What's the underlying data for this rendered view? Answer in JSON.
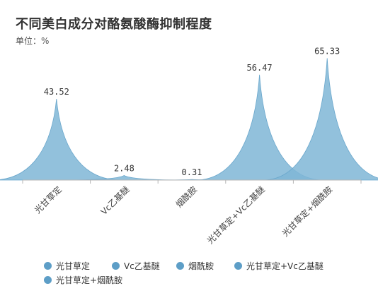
{
  "title": "不同美白成分对酪氨酸酶抑制程度",
  "unit_label": "单位：%",
  "colors": {
    "series": "#7fb6d6",
    "series_stroke": "#6aa7cc",
    "legend_dot": "#5d9ec7",
    "axis": "#b5b5b5"
  },
  "chart_data": {
    "type": "area",
    "title": "不同美白成分对酪氨酸酶抑制程度",
    "ylabel": "单位：%",
    "categories": [
      "光甘草定",
      "Vc乙基醚",
      "烟酰胺",
      "光甘草定+Vc乙基醚",
      "光甘草定+烟酰胺"
    ],
    "values": [
      43.52,
      2.48,
      0.31,
      56.47,
      65.33
    ],
    "data_labels": [
      "43.52",
      "2.48",
      "0.31",
      "56.47",
      "65.33"
    ],
    "ylim": [
      0,
      70
    ],
    "grid": false,
    "legend_position": "bottom"
  },
  "legend": {
    "items": [
      "光甘草定",
      "Vc乙基醚",
      "烟酰胺",
      "光甘草定+Vc乙基醚",
      "光甘草定+烟酰胺"
    ]
  }
}
